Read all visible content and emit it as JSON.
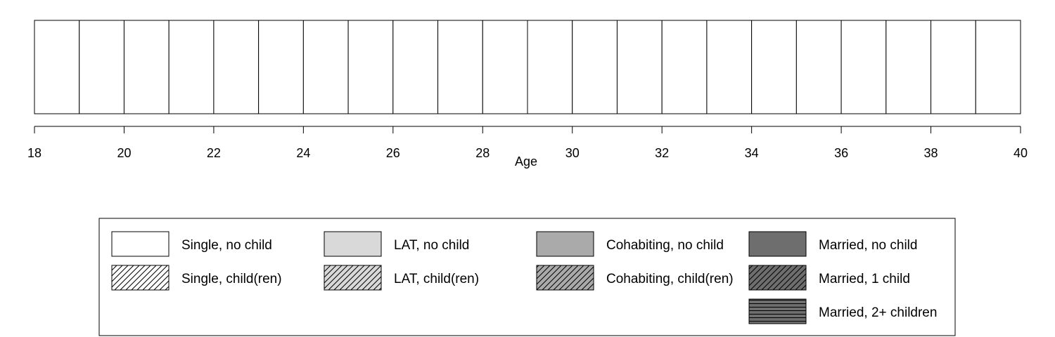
{
  "chart_data": {
    "type": "bar",
    "description_of_axis": "Age",
    "xlabel": "Age",
    "ylabel": "",
    "xlim": [
      18,
      40
    ],
    "x_ticks": [
      18,
      20,
      22,
      24,
      26,
      28,
      30,
      32,
      34,
      36,
      38,
      40
    ],
    "ages": [
      18,
      19,
      20,
      21,
      22,
      23,
      24,
      25,
      26,
      27,
      28,
      29,
      30,
      31,
      32,
      33,
      34,
      35,
      36,
      37,
      38,
      39
    ],
    "states": [
      "Single, no child",
      "Single, no child",
      "Single, no child",
      "Single, no child",
      "Single, no child",
      "Single, no child",
      "Single, no child",
      "Single, no child",
      "Single, no child",
      "Single, no child",
      "Single, no child",
      "Single, no child",
      "Single, no child",
      "Single, no child",
      "Single, no child",
      "Single, no child",
      "Single, no child",
      "Single, no child",
      "Single, no child",
      "Single, no child",
      "Single, no child",
      "Single, no child"
    ],
    "legend": {
      "position": "bottom",
      "items": [
        {
          "label": "Single, no child",
          "fill": "#ffffff",
          "pattern": "none"
        },
        {
          "label": "Single, child(ren)",
          "fill": "#ffffff",
          "pattern": "diagonal"
        },
        {
          "label": "LAT, no child",
          "fill": "#d9d9d9",
          "pattern": "none"
        },
        {
          "label": "LAT, child(ren)",
          "fill": "#d9d9d9",
          "pattern": "diagonal"
        },
        {
          "label": "Cohabiting, no child",
          "fill": "#aaaaaa",
          "pattern": "none"
        },
        {
          "label": "Cohabiting, child(ren)",
          "fill": "#aaaaaa",
          "pattern": "diagonal"
        },
        {
          "label": "Married, no child",
          "fill": "#6e6e6e",
          "pattern": "none"
        },
        {
          "label": "Married, 1 child",
          "fill": "#6e6e6e",
          "pattern": "diagonal"
        },
        {
          "label": "Married, 2+ children",
          "fill": "#6e6e6e",
          "pattern": "horizontal"
        }
      ]
    }
  }
}
